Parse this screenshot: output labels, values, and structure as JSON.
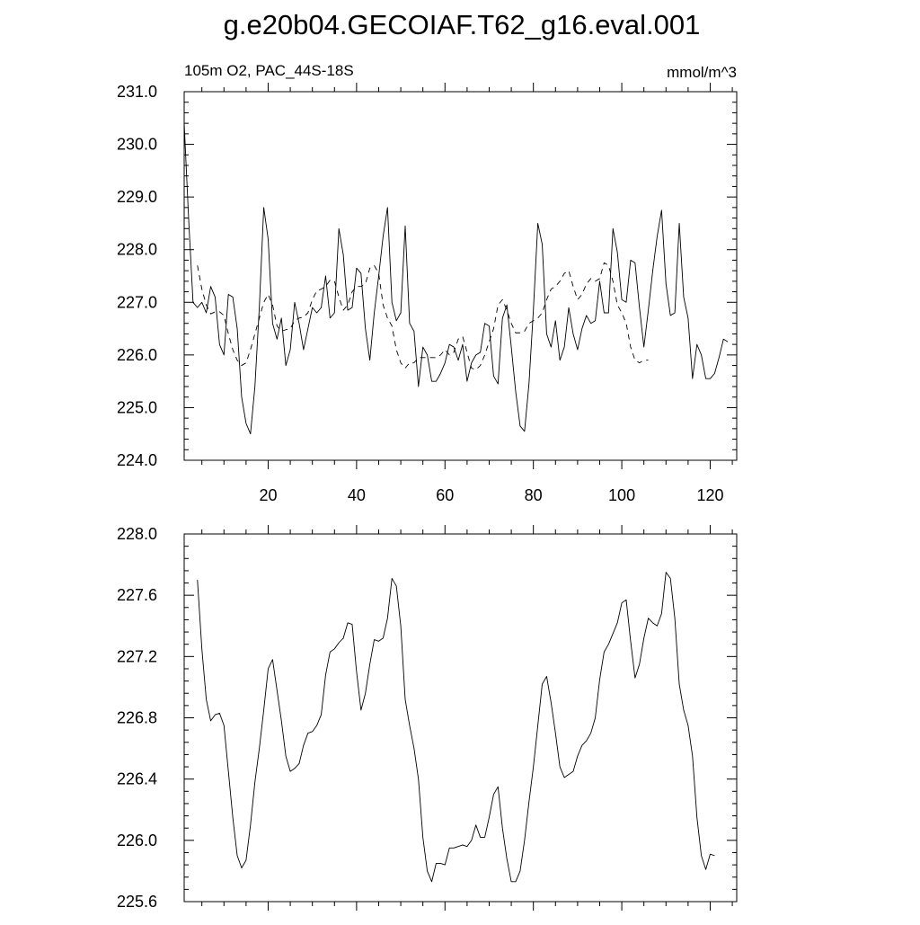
{
  "title": "g.e20b04.GECOIAF.T62_g16.eval.001",
  "subtitle_left": "105m O2, PAC_44S-18S",
  "subtitle_right": "mmol/m^3",
  "colors": {
    "line": "#000000",
    "background": "#ffffff"
  },
  "chart_data": [
    {
      "type": "line",
      "xlim": [
        1,
        126
      ],
      "ylim": [
        224.0,
        231.0
      ],
      "x_ticks": [
        20,
        40,
        60,
        80,
        100,
        120
      ],
      "x_tick_labels": [
        "20",
        "40",
        "60",
        "80",
        "100",
        "120"
      ],
      "y_ticks": [
        224.0,
        225.0,
        226.0,
        227.0,
        228.0,
        229.0,
        230.0,
        231.0
      ],
      "y_tick_labels": [
        "224.0",
        "225.0",
        "226.0",
        "227.0",
        "228.0",
        "229.0",
        "230.0",
        "231.0"
      ],
      "grid": false,
      "series": [
        {
          "style": "solid",
          "x_start": 1,
          "values": [
            230.4,
            228.6,
            227.0,
            226.9,
            227.0,
            226.8,
            227.3,
            227.1,
            226.2,
            226.0,
            227.15,
            227.1,
            226.5,
            225.2,
            224.7,
            224.5,
            225.4,
            226.9,
            228.8,
            228.2,
            226.6,
            226.3,
            226.7,
            225.8,
            226.1,
            227.0,
            226.6,
            226.1,
            226.5,
            226.9,
            226.8,
            226.9,
            227.5,
            226.7,
            226.8,
            228.4,
            227.9,
            226.85,
            226.9,
            227.65,
            227.55,
            226.5,
            225.9,
            226.8,
            227.5,
            228.25,
            228.8,
            227.0,
            226.65,
            226.8,
            228.45,
            226.6,
            226.45,
            225.4,
            226.15,
            226.0,
            225.5,
            225.5,
            225.65,
            225.85,
            226.2,
            226.15,
            225.9,
            226.2,
            225.5,
            225.85,
            226.0,
            226.05,
            226.6,
            226.55,
            225.6,
            225.45,
            226.7,
            226.95,
            226.15,
            225.3,
            224.65,
            224.55,
            225.45,
            226.85,
            228.5,
            228.1,
            226.4,
            226.15,
            226.65,
            225.9,
            226.15,
            226.9,
            226.4,
            226.1,
            226.5,
            226.75,
            226.6,
            226.65,
            227.4,
            226.8,
            226.8,
            228.4,
            227.95,
            227.05,
            227.0,
            227.8,
            227.75,
            226.9,
            226.15,
            226.85,
            227.6,
            228.25,
            228.75,
            227.35,
            226.75,
            226.8,
            228.5,
            227.1,
            226.7,
            225.55,
            226.2,
            226.0,
            225.55,
            225.55,
            225.65,
            225.95,
            226.3,
            226.25
          ]
        },
        {
          "style": "dashed",
          "x_start": 4,
          "values": [
            227.7,
            227.25,
            226.95,
            226.78,
            226.82,
            226.82,
            226.75,
            226.4,
            226.1,
            225.9,
            225.8,
            225.85,
            226.1,
            226.4,
            226.7,
            227.0,
            227.15,
            226.95,
            226.55,
            226.45,
            226.48,
            226.5,
            226.65,
            226.7,
            226.72,
            226.8,
            227.05,
            227.22,
            227.25,
            227.3,
            227.42,
            227.4,
            227.1,
            226.85,
            226.95,
            227.2,
            227.3,
            227.3,
            227.35,
            227.65,
            227.7,
            227.55,
            226.95,
            226.7,
            226.55,
            226.1,
            225.85,
            225.75,
            225.85,
            225.85,
            225.95,
            225.95,
            225.95,
            225.95,
            225.95,
            226.0,
            226.1,
            226.0,
            226.05,
            226.3,
            226.35,
            226.05,
            225.75,
            225.72,
            225.8,
            226.0,
            226.25,
            226.5,
            226.95,
            227.05,
            226.85,
            226.6,
            226.42,
            226.42,
            226.45,
            226.6,
            226.65,
            226.7,
            226.8,
            227.05,
            227.25,
            227.3,
            227.4,
            227.55,
            227.6,
            227.3,
            227.05,
            227.15,
            227.35,
            227.45,
            227.4,
            227.45,
            227.75,
            227.7,
            227.4,
            226.95,
            226.8,
            226.6,
            226.15,
            225.9,
            225.85,
            225.9,
            225.9
          ]
        }
      ]
    },
    {
      "type": "line",
      "xlim": [
        1,
        126
      ],
      "ylim": [
        225.6,
        228.0
      ],
      "x_ticks": [
        20,
        40,
        60,
        80,
        100,
        120
      ],
      "x_tick_labels": [],
      "y_ticks": [
        225.6,
        226.0,
        226.4,
        226.8,
        227.2,
        227.6,
        228.0
      ],
      "y_tick_labels": [
        "225.6",
        "226.0",
        "226.4",
        "226.8",
        "227.2",
        "227.6",
        "228.0"
      ],
      "grid": false,
      "series": [
        {
          "style": "solid",
          "x_start": 4,
          "values": [
            227.7,
            227.25,
            226.92,
            226.78,
            226.82,
            226.83,
            226.75,
            226.45,
            226.15,
            225.9,
            225.82,
            225.87,
            226.1,
            226.38,
            226.6,
            226.85,
            227.12,
            227.18,
            226.98,
            226.78,
            226.55,
            226.45,
            226.47,
            226.5,
            226.62,
            226.7,
            226.71,
            226.75,
            226.82,
            227.08,
            227.23,
            227.25,
            227.29,
            227.32,
            227.42,
            227.41,
            227.1,
            226.85,
            226.96,
            227.15,
            227.31,
            227.3,
            227.32,
            227.45,
            227.71,
            227.66,
            227.4,
            226.92,
            226.75,
            226.6,
            226.4,
            226.02,
            225.8,
            225.73,
            225.85,
            225.85,
            225.84,
            225.95,
            225.95,
            225.96,
            225.97,
            225.96,
            226.0,
            226.1,
            226.02,
            226.02,
            226.15,
            226.3,
            226.35,
            226.08,
            225.88,
            225.73,
            225.73,
            225.8,
            226.0,
            226.25,
            226.48,
            226.75,
            227.02,
            227.07,
            226.9,
            226.7,
            226.48,
            226.41,
            226.43,
            226.45,
            226.55,
            226.62,
            226.65,
            226.7,
            226.8,
            227.05,
            227.23,
            227.28,
            227.35,
            227.42,
            227.55,
            227.57,
            227.3,
            227.06,
            227.15,
            227.32,
            227.45,
            227.42,
            227.4,
            227.48,
            227.75,
            227.71,
            227.45,
            227.02,
            226.85,
            226.75,
            226.55,
            226.15,
            225.9,
            225.81,
            225.91,
            225.9
          ]
        }
      ]
    }
  ]
}
